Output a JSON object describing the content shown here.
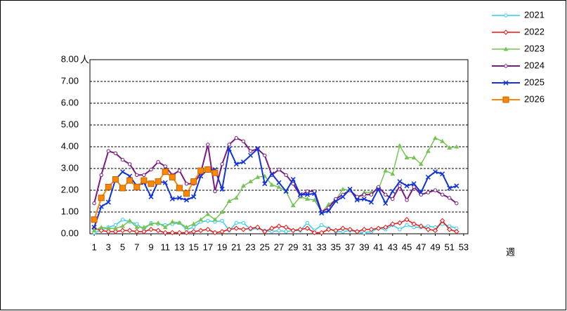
{
  "chart_data": {
    "type": "line",
    "xlabel": "週",
    "ylabel": "人",
    "x": [
      1,
      2,
      3,
      4,
      5,
      6,
      7,
      8,
      9,
      10,
      11,
      12,
      13,
      14,
      15,
      16,
      17,
      18,
      19,
      20,
      21,
      22,
      23,
      24,
      25,
      26,
      27,
      28,
      29,
      30,
      31,
      32,
      33,
      34,
      35,
      36,
      37,
      38,
      39,
      40,
      41,
      42,
      43,
      44,
      45,
      46,
      47,
      48,
      49,
      50,
      51,
      52,
      53
    ],
    "xlim": [
      0.4,
      53.6
    ],
    "xticks": [
      1,
      3,
      5,
      7,
      9,
      11,
      13,
      15,
      17,
      19,
      21,
      23,
      25,
      27,
      29,
      31,
      33,
      35,
      37,
      39,
      41,
      43,
      45,
      47,
      49,
      51,
      53
    ],
    "ylim": [
      0,
      8
    ],
    "yticks": [
      {
        "value": 0,
        "label": "0.00"
      },
      {
        "value": 1,
        "label": "1.00"
      },
      {
        "value": 2,
        "label": "2.00"
      },
      {
        "value": 3,
        "label": "3.00"
      },
      {
        "value": 4,
        "label": "4.00"
      },
      {
        "value": 5,
        "label": "5.00"
      },
      {
        "value": 6,
        "label": "6.00"
      },
      {
        "value": 7,
        "label": "7.00"
      },
      {
        "value": 8,
        "label": "8.00"
      }
    ],
    "grid": true,
    "legend": "right",
    "series": [
      {
        "name": "2021",
        "color": "#33ccee",
        "marker": "circle",
        "values": [
          0.05,
          0.15,
          0.3,
          0.4,
          0.65,
          0.55,
          0.45,
          0.2,
          0.5,
          0.45,
          0.4,
          0.45,
          0.5,
          0.2,
          0.3,
          0.55,
          0.6,
          0.55,
          0.6,
          0.15,
          0.5,
          0.5,
          0.2,
          0.25,
          0.15,
          0.1,
          0.15,
          0.1,
          0.15,
          0.15,
          0.5,
          0.15,
          0.4,
          0.25,
          0.1,
          0.1,
          0.15,
          0.1,
          0.05,
          0.1,
          0.25,
          0.2,
          0.4,
          0.2,
          0.4,
          0.3,
          0.3,
          0.35,
          0.3,
          0.45,
          0.35,
          0.25,
          null
        ]
      },
      {
        "name": "2022",
        "color": "#ee1111",
        "marker": "diamond",
        "values": [
          0.25,
          0.15,
          0.1,
          0.1,
          0.15,
          0.15,
          0.1,
          0.1,
          0.2,
          0.15,
          0.05,
          0.05,
          0.05,
          0.05,
          0.1,
          0.15,
          0.2,
          0.05,
          0.1,
          0.2,
          0.25,
          0.2,
          0.25,
          0.3,
          0.1,
          0.25,
          0.35,
          0.3,
          0.15,
          0.2,
          0.25,
          0.05,
          0.05,
          0.2,
          0.15,
          0.25,
          0.2,
          0.1,
          0.2,
          0.2,
          0.25,
          0.3,
          0.45,
          0.5,
          0.65,
          0.45,
          0.35,
          0.2,
          0.15,
          0.6,
          0.2,
          0.1,
          null
        ]
      },
      {
        "name": "2023",
        "color": "#77c455",
        "marker": "triangle",
        "values": [
          0.15,
          0.3,
          0.25,
          0.25,
          0.35,
          0.6,
          0.3,
          0.3,
          0.45,
          0.5,
          0.3,
          0.55,
          0.5,
          0.3,
          0.45,
          0.65,
          0.9,
          0.65,
          1.0,
          1.5,
          1.65,
          2.2,
          2.4,
          2.6,
          2.65,
          2.25,
          2.15,
          1.95,
          1.3,
          1.7,
          1.6,
          1.55,
          1.0,
          1.35,
          1.55,
          2.05,
          2.0,
          1.6,
          1.9,
          1.9,
          2.05,
          2.9,
          2.75,
          4.05,
          3.5,
          3.5,
          3.2,
          3.8,
          4.4,
          4.25,
          3.95,
          4.0,
          null
        ]
      },
      {
        "name": "2024",
        "color": "#7a1a82",
        "marker": "circle",
        "values": [
          1.4,
          2.7,
          3.8,
          3.7,
          3.4,
          3.2,
          2.7,
          2.7,
          2.95,
          3.3,
          3.1,
          2.7,
          2.9,
          2.3,
          2.3,
          2.8,
          4.1,
          1.95,
          3.2,
          4.1,
          4.4,
          4.25,
          3.8,
          3.9,
          3.6,
          2.7,
          2.95,
          2.7,
          2.3,
          1.75,
          1.95,
          1.95,
          1.0,
          1.2,
          1.6,
          1.8,
          2.0,
          1.7,
          1.8,
          1.8,
          2.15,
          1.8,
          1.6,
          2.2,
          1.55,
          2.15,
          1.8,
          1.9,
          2.0,
          1.8,
          1.65,
          1.4,
          null
        ]
      },
      {
        "name": "2025",
        "color": "#1133dd",
        "marker": "x",
        "values": [
          0.3,
          1.25,
          1.45,
          2.5,
          2.85,
          2.65,
          2.2,
          2.35,
          1.7,
          2.4,
          2.35,
          1.6,
          1.65,
          1.55,
          1.7,
          2.65,
          2.95,
          2.95,
          2.05,
          3.9,
          3.2,
          3.3,
          3.6,
          3.9,
          2.3,
          2.75,
          2.35,
          1.95,
          2.5,
          1.8,
          1.8,
          1.85,
          0.95,
          1.05,
          1.5,
          1.7,
          2.05,
          1.55,
          1.6,
          1.45,
          2.05,
          1.4,
          1.95,
          2.4,
          2.2,
          2.3,
          1.9,
          2.6,
          2.85,
          2.75,
          2.1,
          2.2,
          null
        ]
      },
      {
        "name": "2026",
        "color": "#ff8800",
        "marker": "square",
        "values": [
          0.65,
          1.65,
          2.15,
          2.5,
          2.1,
          2.45,
          2.15,
          2.45,
          2.3,
          2.4,
          2.85,
          2.6,
          2.1,
          1.85,
          2.4,
          2.9,
          2.95,
          2.8,
          null,
          null,
          null,
          null,
          null,
          null,
          null,
          null,
          null,
          null,
          null,
          null,
          null,
          null,
          null,
          null,
          null,
          null,
          null,
          null,
          null,
          null,
          null,
          null,
          null,
          null,
          null,
          null,
          null,
          null,
          null,
          null,
          null,
          null,
          null
        ]
      }
    ]
  }
}
